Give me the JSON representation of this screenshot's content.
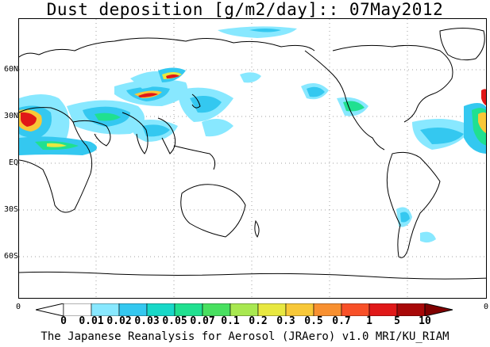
{
  "title": "Dust deposition [g/m2/day]:: 07May2012",
  "footer": "The Japanese Reanalysis for Aerosol (JRAero) v1.0 MRI/KU_RIAM",
  "map": {
    "projection": "cylindrical-equidistant",
    "center_longitude": 180,
    "latitude_labels": [
      "60N",
      "30N",
      "EQ",
      "30S",
      "60S"
    ],
    "latitude_values": [
      60,
      30,
      0,
      -30,
      -60
    ],
    "x_edge_labels": {
      "left": "0",
      "right": "0"
    },
    "gridlines": "dotted"
  },
  "colorbar": {
    "labels": [
      "0",
      "0.01",
      "0.02",
      "0.03",
      "0.05",
      "0.07",
      "0.1",
      "0.2",
      "0.3",
      "0.5",
      "0.7",
      "1",
      "5",
      "10"
    ],
    "colors": [
      "#ffffff",
      "#ffffff",
      "#88e8ff",
      "#34c8f0",
      "#18d8c8",
      "#20e090",
      "#48e060",
      "#a8e850",
      "#e8e840",
      "#f8c838",
      "#f89030",
      "#f85028",
      "#e01818",
      "#a80808",
      "#800000"
    ]
  },
  "colors": {
    "land_outline": "#000000",
    "grid": "#a0a0a0"
  }
}
